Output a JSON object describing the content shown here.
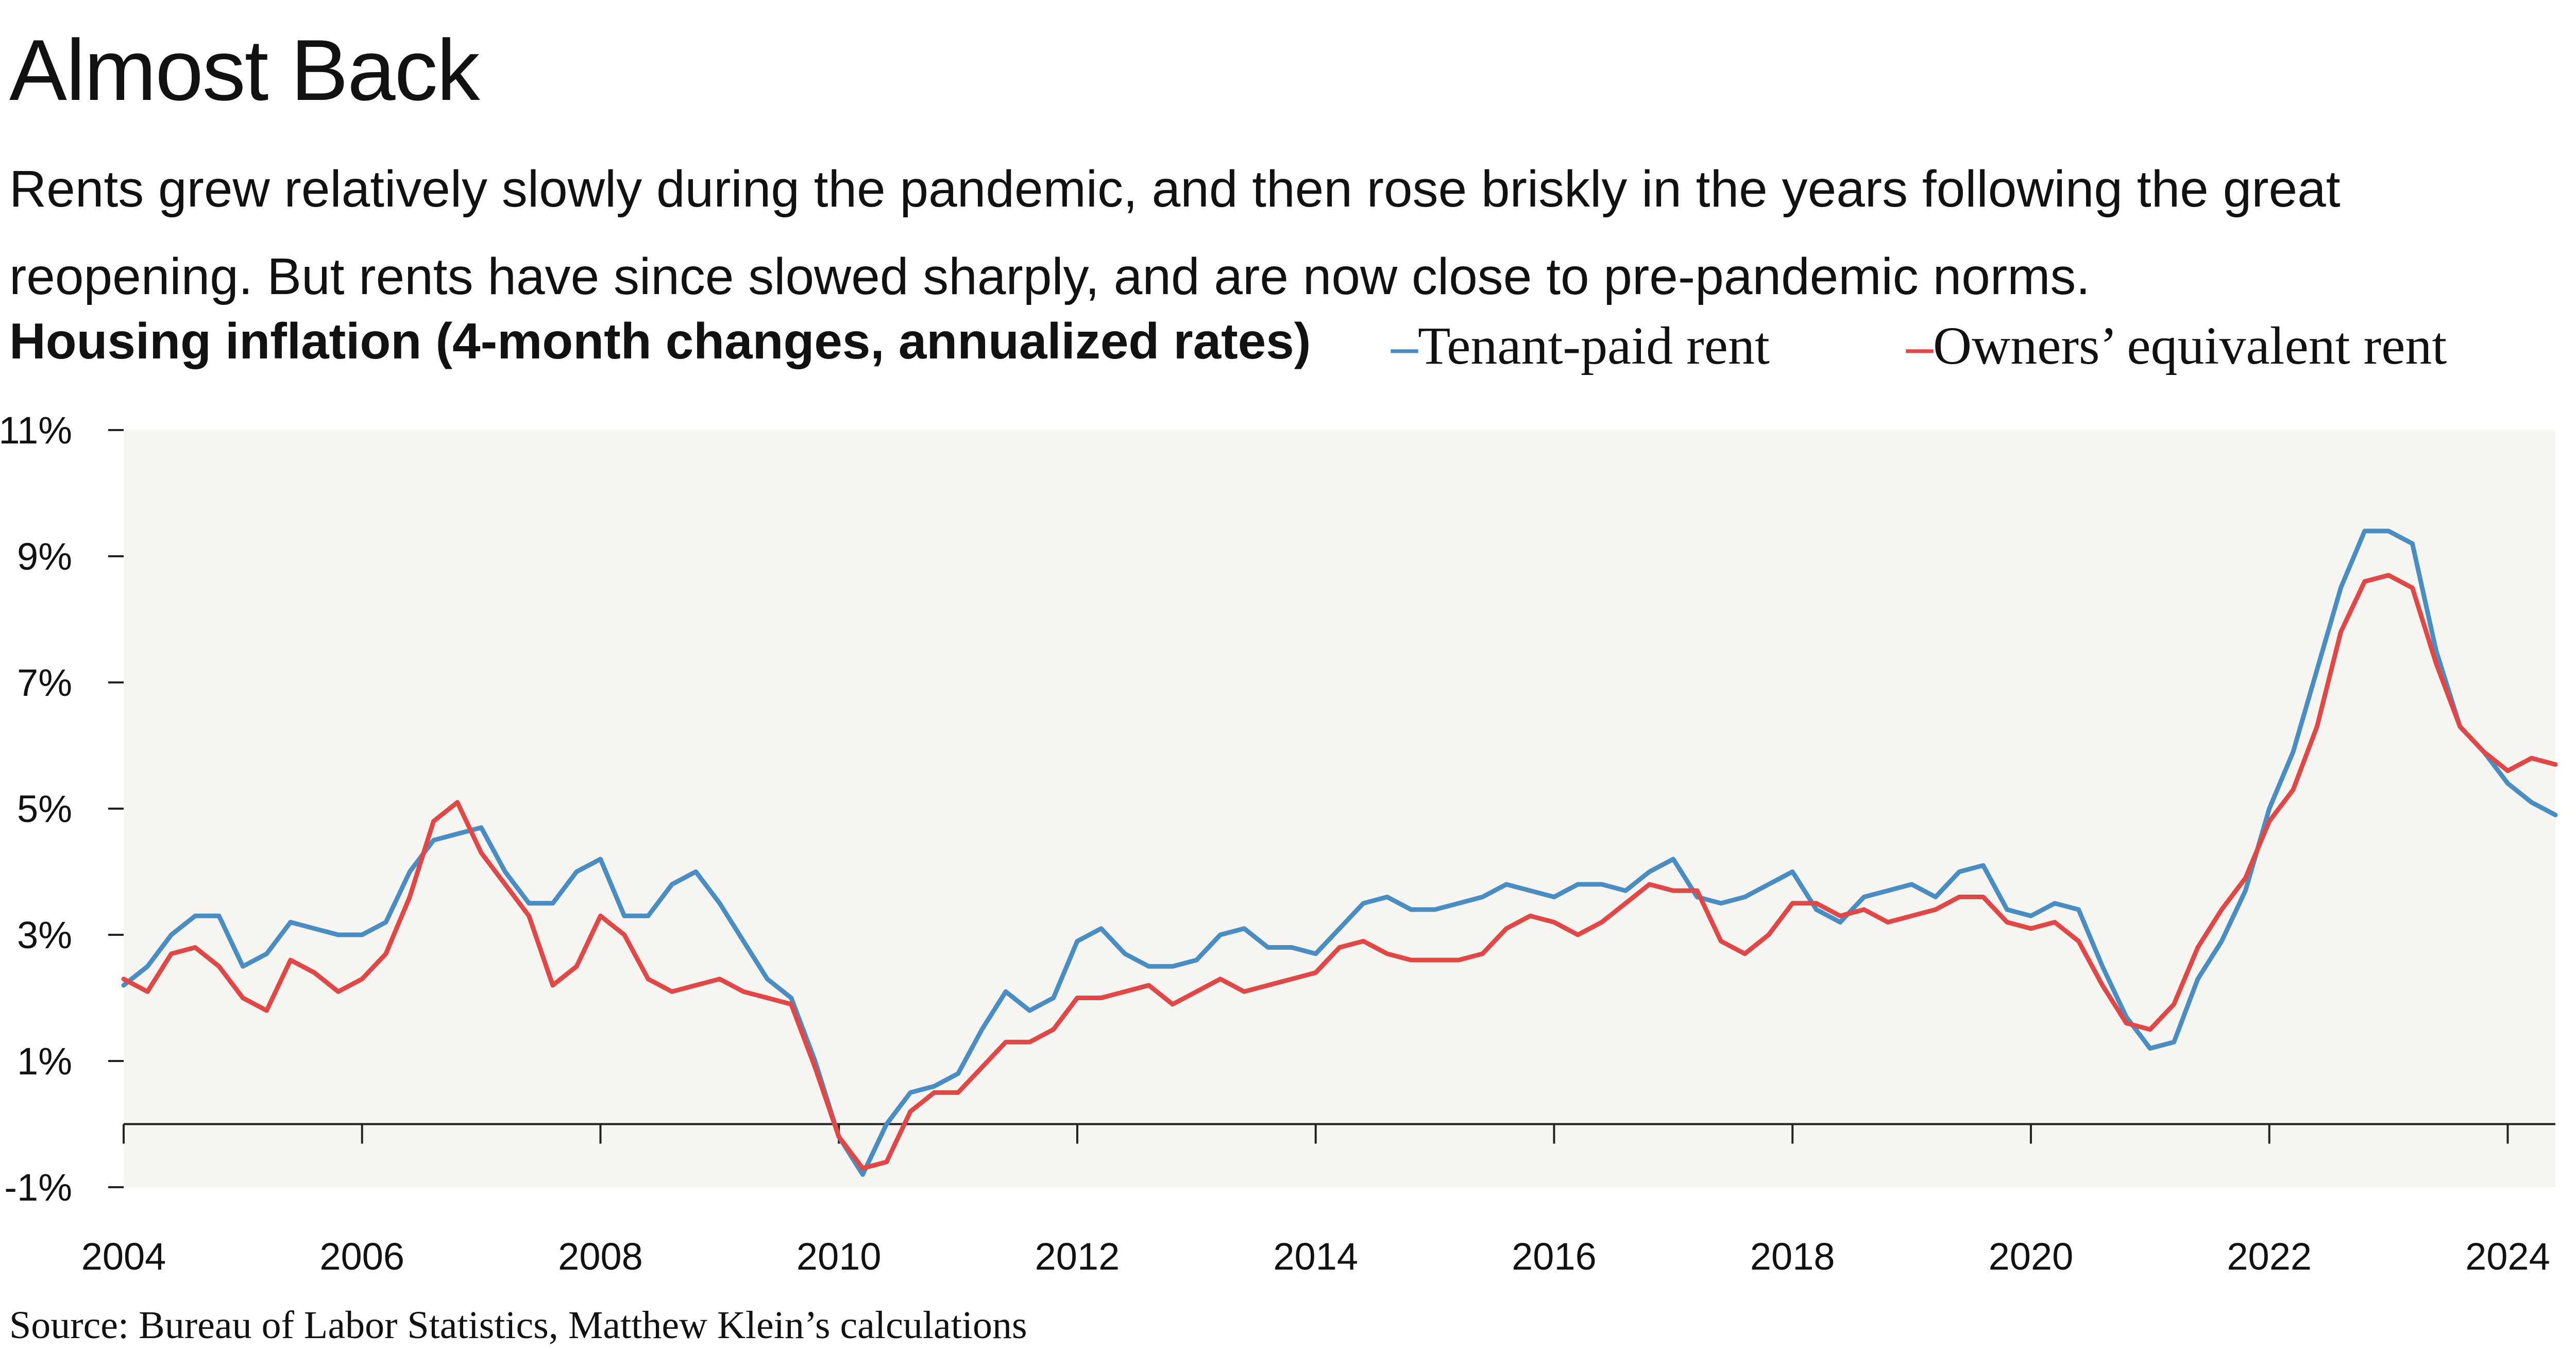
{
  "title": "Almost Back",
  "subtitle": "Rents grew relatively slowly during the pandemic, and then rose briskly in the years following the great reopening. But rents have since slowed sharply, and are now close to pre-pandemic norms.",
  "source": "Source: Bureau of Labor Statistics, Matthew Klein’s calculations",
  "chart_data": {
    "type": "line",
    "title": "Housing inflation (4-month changes, annualized rates)",
    "legend_position": "top-right",
    "grid": false,
    "background": "#f7f5f2",
    "xlim": [
      2004.0,
      2024.4
    ],
    "ylim": [
      -1,
      11
    ],
    "x_ticks": [
      2004,
      2006,
      2008,
      2010,
      2012,
      2014,
      2016,
      2018,
      2020,
      2022,
      2024
    ],
    "x_tick_labels": [
      "2004",
      "2006",
      "2008",
      "2010",
      "2012",
      "2014",
      "2016",
      "2018",
      "2020",
      "2022",
      "2024"
    ],
    "y_ticks": [
      11,
      9,
      7,
      5,
      3,
      1,
      -1
    ],
    "y_tick_labels": [
      "11%",
      "9%",
      "7%",
      "5%",
      "3%",
      "1%",
      "-1%"
    ],
    "series": [
      {
        "name": "Tenant-paid rent",
        "legend_label": "–Tenant-paid rent",
        "color": "#4a8dc2",
        "points": [
          [
            2004.0,
            2.2
          ],
          [
            2004.2,
            2.5
          ],
          [
            2004.4,
            3.0
          ],
          [
            2004.6,
            3.3
          ],
          [
            2004.8,
            3.3
          ],
          [
            2005.0,
            2.5
          ],
          [
            2005.2,
            2.7
          ],
          [
            2005.4,
            3.2
          ],
          [
            2005.6,
            3.1
          ],
          [
            2005.8,
            3.0
          ],
          [
            2006.0,
            3.0
          ],
          [
            2006.2,
            3.2
          ],
          [
            2006.4,
            4.0
          ],
          [
            2006.6,
            4.5
          ],
          [
            2006.8,
            4.6
          ],
          [
            2007.0,
            4.7
          ],
          [
            2007.2,
            4.0
          ],
          [
            2007.4,
            3.5
          ],
          [
            2007.6,
            3.5
          ],
          [
            2007.8,
            4.0
          ],
          [
            2008.0,
            4.2
          ],
          [
            2008.2,
            3.3
          ],
          [
            2008.4,
            3.3
          ],
          [
            2008.6,
            3.8
          ],
          [
            2008.8,
            4.0
          ],
          [
            2009.0,
            3.5
          ],
          [
            2009.2,
            2.9
          ],
          [
            2009.4,
            2.3
          ],
          [
            2009.6,
            2.0
          ],
          [
            2009.8,
            1.0
          ],
          [
            2010.0,
            -0.2
          ],
          [
            2010.2,
            -0.8
          ],
          [
            2010.4,
            0.0
          ],
          [
            2010.6,
            0.5
          ],
          [
            2010.8,
            0.6
          ],
          [
            2011.0,
            0.8
          ],
          [
            2011.2,
            1.5
          ],
          [
            2011.4,
            2.1
          ],
          [
            2011.6,
            1.8
          ],
          [
            2011.8,
            2.0
          ],
          [
            2012.0,
            2.9
          ],
          [
            2012.2,
            3.1
          ],
          [
            2012.4,
            2.7
          ],
          [
            2012.6,
            2.5
          ],
          [
            2012.8,
            2.5
          ],
          [
            2013.0,
            2.6
          ],
          [
            2013.2,
            3.0
          ],
          [
            2013.4,
            3.1
          ],
          [
            2013.6,
            2.8
          ],
          [
            2013.8,
            2.8
          ],
          [
            2014.0,
            2.7
          ],
          [
            2014.2,
            3.1
          ],
          [
            2014.4,
            3.5
          ],
          [
            2014.6,
            3.6
          ],
          [
            2014.8,
            3.4
          ],
          [
            2015.0,
            3.4
          ],
          [
            2015.2,
            3.5
          ],
          [
            2015.4,
            3.6
          ],
          [
            2015.6,
            3.8
          ],
          [
            2015.8,
            3.7
          ],
          [
            2016.0,
            3.6
          ],
          [
            2016.2,
            3.8
          ],
          [
            2016.4,
            3.8
          ],
          [
            2016.6,
            3.7
          ],
          [
            2016.8,
            4.0
          ],
          [
            2017.0,
            4.2
          ],
          [
            2017.2,
            3.6
          ],
          [
            2017.4,
            3.5
          ],
          [
            2017.6,
            3.6
          ],
          [
            2017.8,
            3.8
          ],
          [
            2018.0,
            4.0
          ],
          [
            2018.2,
            3.4
          ],
          [
            2018.4,
            3.2
          ],
          [
            2018.6,
            3.6
          ],
          [
            2018.8,
            3.7
          ],
          [
            2019.0,
            3.8
          ],
          [
            2019.2,
            3.6
          ],
          [
            2019.4,
            4.0
          ],
          [
            2019.6,
            4.1
          ],
          [
            2019.8,
            3.4
          ],
          [
            2020.0,
            3.3
          ],
          [
            2020.2,
            3.5
          ],
          [
            2020.4,
            3.4
          ],
          [
            2020.6,
            2.5
          ],
          [
            2020.8,
            1.7
          ],
          [
            2021.0,
            1.2
          ],
          [
            2021.2,
            1.3
          ],
          [
            2021.4,
            2.3
          ],
          [
            2021.6,
            2.9
          ],
          [
            2021.8,
            3.7
          ],
          [
            2022.0,
            5.0
          ],
          [
            2022.2,
            5.9
          ],
          [
            2022.4,
            7.2
          ],
          [
            2022.6,
            8.5
          ],
          [
            2022.8,
            9.4
          ],
          [
            2023.0,
            9.4
          ],
          [
            2023.2,
            9.2
          ],
          [
            2023.4,
            7.5
          ],
          [
            2023.6,
            6.3
          ],
          [
            2023.8,
            5.9
          ],
          [
            2024.0,
            5.4
          ],
          [
            2024.2,
            5.1
          ],
          [
            2024.4,
            4.9
          ]
        ]
      },
      {
        "name": "Owners’ equivalent rent",
        "legend_label": "–Owners’ equivalent rent",
        "color": "#e04848",
        "points": [
          [
            2004.0,
            2.3
          ],
          [
            2004.2,
            2.1
          ],
          [
            2004.4,
            2.7
          ],
          [
            2004.6,
            2.8
          ],
          [
            2004.8,
            2.5
          ],
          [
            2005.0,
            2.0
          ],
          [
            2005.2,
            1.8
          ],
          [
            2005.4,
            2.6
          ],
          [
            2005.6,
            2.4
          ],
          [
            2005.8,
            2.1
          ],
          [
            2006.0,
            2.3
          ],
          [
            2006.2,
            2.7
          ],
          [
            2006.4,
            3.6
          ],
          [
            2006.6,
            4.8
          ],
          [
            2006.8,
            5.1
          ],
          [
            2007.0,
            4.3
          ],
          [
            2007.2,
            3.8
          ],
          [
            2007.4,
            3.3
          ],
          [
            2007.6,
            2.2
          ],
          [
            2007.8,
            2.5
          ],
          [
            2008.0,
            3.3
          ],
          [
            2008.2,
            3.0
          ],
          [
            2008.4,
            2.3
          ],
          [
            2008.6,
            2.1
          ],
          [
            2008.8,
            2.2
          ],
          [
            2009.0,
            2.3
          ],
          [
            2009.2,
            2.1
          ],
          [
            2009.4,
            2.0
          ],
          [
            2009.6,
            1.9
          ],
          [
            2009.8,
            0.9
          ],
          [
            2010.0,
            -0.2
          ],
          [
            2010.2,
            -0.7
          ],
          [
            2010.4,
            -0.6
          ],
          [
            2010.6,
            0.2
          ],
          [
            2010.8,
            0.5
          ],
          [
            2011.0,
            0.5
          ],
          [
            2011.2,
            0.9
          ],
          [
            2011.4,
            1.3
          ],
          [
            2011.6,
            1.3
          ],
          [
            2011.8,
            1.5
          ],
          [
            2012.0,
            2.0
          ],
          [
            2012.2,
            2.0
          ],
          [
            2012.4,
            2.1
          ],
          [
            2012.6,
            2.2
          ],
          [
            2012.8,
            1.9
          ],
          [
            2013.0,
            2.1
          ],
          [
            2013.2,
            2.3
          ],
          [
            2013.4,
            2.1
          ],
          [
            2013.6,
            2.2
          ],
          [
            2013.8,
            2.3
          ],
          [
            2014.0,
            2.4
          ],
          [
            2014.2,
            2.8
          ],
          [
            2014.4,
            2.9
          ],
          [
            2014.6,
            2.7
          ],
          [
            2014.8,
            2.6
          ],
          [
            2015.0,
            2.6
          ],
          [
            2015.2,
            2.6
          ],
          [
            2015.4,
            2.7
          ],
          [
            2015.6,
            3.1
          ],
          [
            2015.8,
            3.3
          ],
          [
            2016.0,
            3.2
          ],
          [
            2016.2,
            3.0
          ],
          [
            2016.4,
            3.2
          ],
          [
            2016.6,
            3.5
          ],
          [
            2016.8,
            3.8
          ],
          [
            2017.0,
            3.7
          ],
          [
            2017.2,
            3.7
          ],
          [
            2017.4,
            2.9
          ],
          [
            2017.6,
            2.7
          ],
          [
            2017.8,
            3.0
          ],
          [
            2018.0,
            3.5
          ],
          [
            2018.2,
            3.5
          ],
          [
            2018.4,
            3.3
          ],
          [
            2018.6,
            3.4
          ],
          [
            2018.8,
            3.2
          ],
          [
            2019.0,
            3.3
          ],
          [
            2019.2,
            3.4
          ],
          [
            2019.4,
            3.6
          ],
          [
            2019.6,
            3.6
          ],
          [
            2019.8,
            3.2
          ],
          [
            2020.0,
            3.1
          ],
          [
            2020.2,
            3.2
          ],
          [
            2020.4,
            2.9
          ],
          [
            2020.6,
            2.2
          ],
          [
            2020.8,
            1.6
          ],
          [
            2021.0,
            1.5
          ],
          [
            2021.2,
            1.9
          ],
          [
            2021.4,
            2.8
          ],
          [
            2021.6,
            3.4
          ],
          [
            2021.8,
            3.9
          ],
          [
            2022.0,
            4.8
          ],
          [
            2022.2,
            5.3
          ],
          [
            2022.4,
            6.3
          ],
          [
            2022.6,
            7.8
          ],
          [
            2022.8,
            8.6
          ],
          [
            2023.0,
            8.7
          ],
          [
            2023.2,
            8.5
          ],
          [
            2023.4,
            7.3
          ],
          [
            2023.6,
            6.3
          ],
          [
            2023.8,
            5.9
          ],
          [
            2024.0,
            5.6
          ],
          [
            2024.2,
            5.8
          ],
          [
            2024.4,
            5.7
          ]
        ]
      }
    ]
  }
}
